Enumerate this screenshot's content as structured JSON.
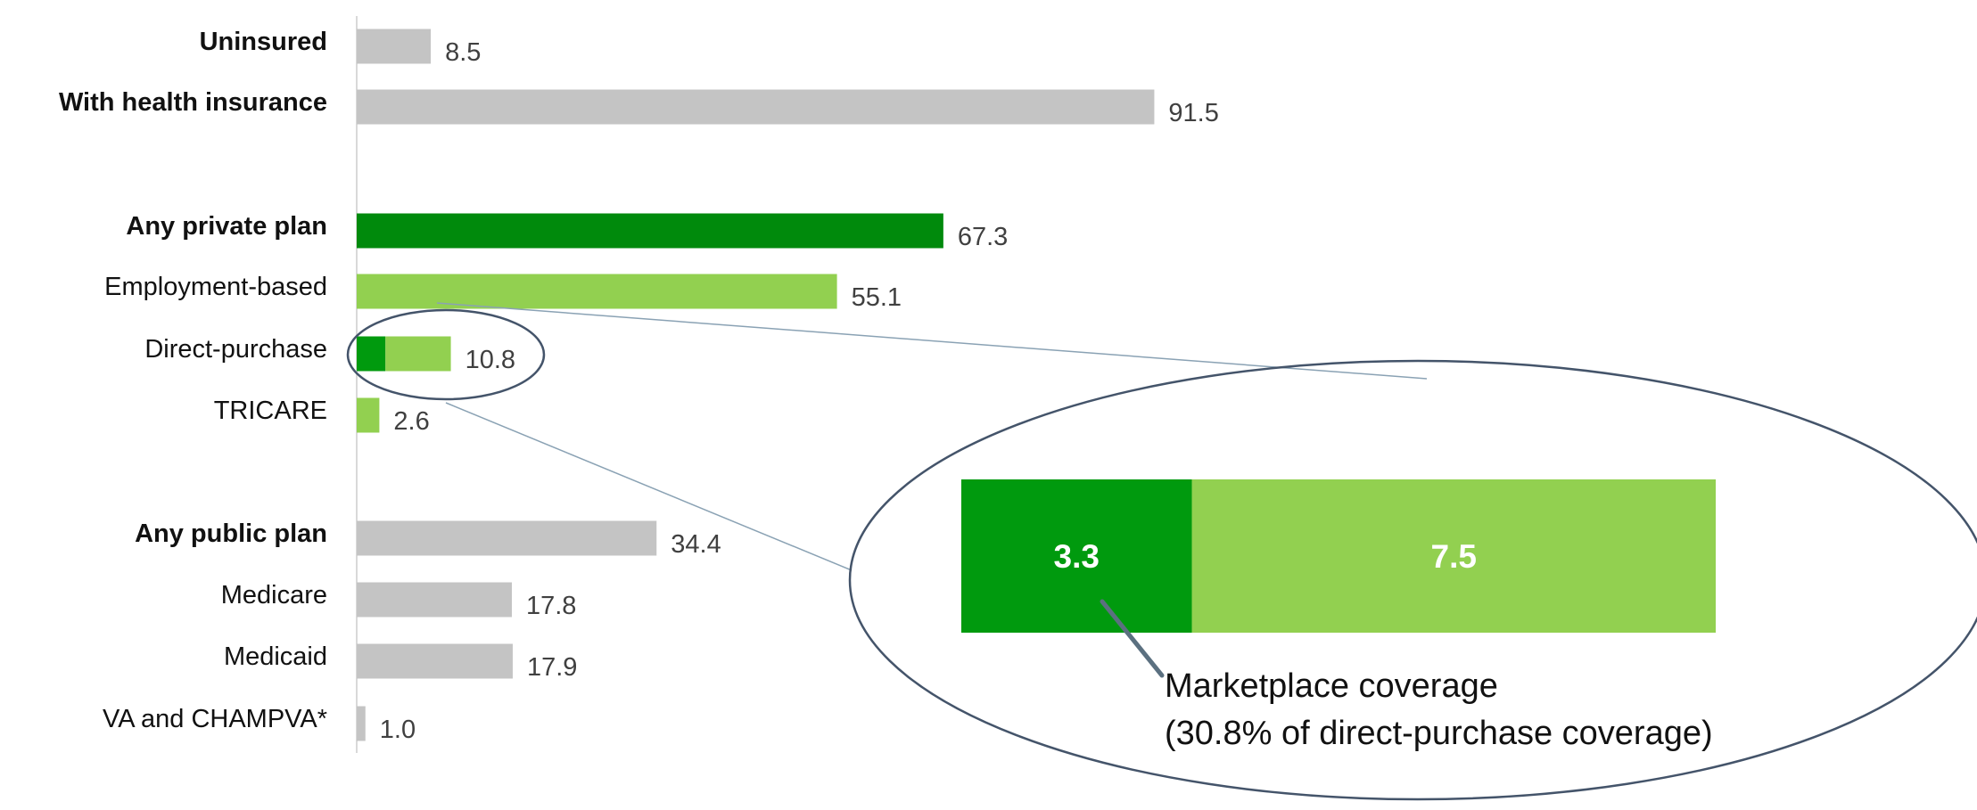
{
  "colors": {
    "gray": "#c4c4c4",
    "dark_green": "#008a0c",
    "mid_green": "#009a0e",
    "light_green": "#92d050",
    "axis": "#d9d9d9",
    "callout_line": "#8aa2b4",
    "ellipse": "#44546a"
  },
  "chart_data": {
    "type": "bar",
    "orientation": "horizontal",
    "xlim": [
      0,
      100
    ],
    "categories": [
      "Uninsured",
      "With health insurance",
      "Any private plan",
      "Employment-based",
      "Direct-purchase",
      "TRICARE",
      "Any public plan",
      "Medicare",
      "Medicaid",
      "VA and CHAMPVA*"
    ],
    "values": [
      8.5,
      91.5,
      67.3,
      55.1,
      10.8,
      2.6,
      34.4,
      17.8,
      17.9,
      1.0
    ],
    "value_labels": [
      "8.5",
      "91.5",
      "67.3",
      "55.1",
      "10.8",
      "2.6",
      "34.4",
      "17.8",
      "17.9",
      "1.0"
    ],
    "bold_categories": [
      "Uninsured",
      "With health insurance",
      "Any private plan",
      "Any public plan"
    ],
    "bar_colors": [
      "gray",
      "gray",
      "dark_green",
      "light_green",
      "split",
      "light_green",
      "gray",
      "gray",
      "gray",
      "gray"
    ],
    "direct_purchase_split": [
      {
        "label": "Marketplace coverage",
        "value": 3.3,
        "value_label": "3.3",
        "color": "mid_green"
      },
      {
        "label": "",
        "value": 7.5,
        "value_label": "7.5",
        "color": "light_green"
      }
    ],
    "annotation": [
      "Marketplace coverage",
      "(30.8% of direct-purchase coverage)"
    ]
  }
}
